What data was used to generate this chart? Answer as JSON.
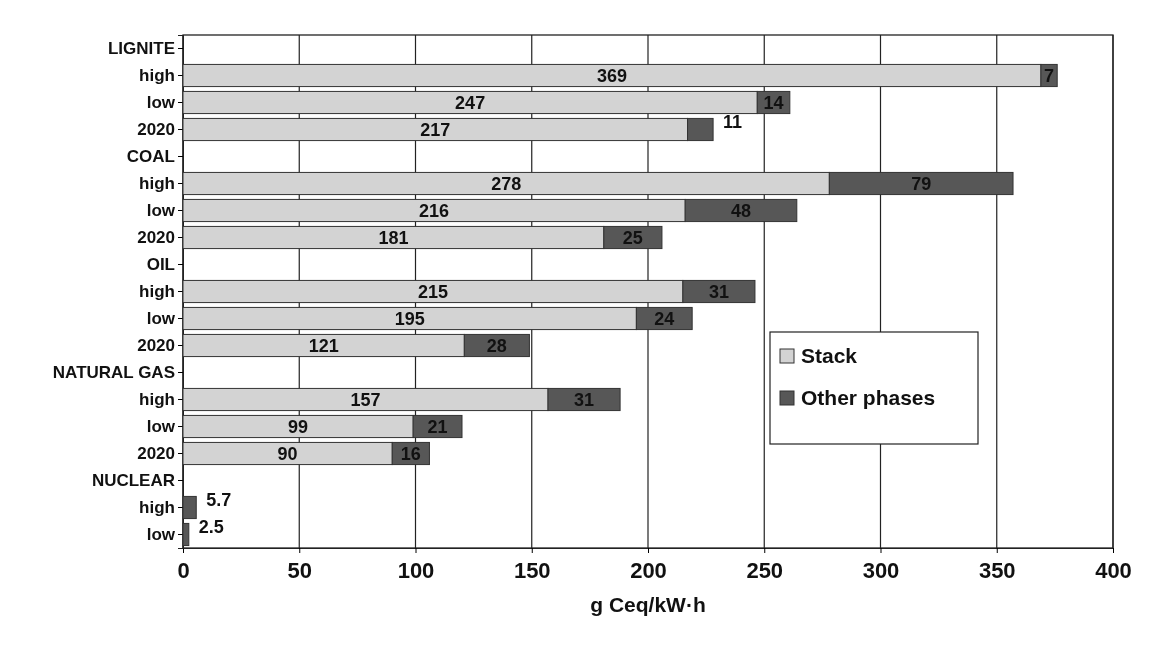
{
  "chart_data": {
    "type": "bar",
    "orientation": "horizontal",
    "stacked": true,
    "categories": [
      "LIGNITE",
      "high",
      "low",
      "2020",
      "COAL",
      "high",
      "low",
      "2020",
      "OIL",
      "high",
      "low",
      "2020",
      "NATURAL GAS",
      "high",
      "low",
      "2020",
      "NUCLEAR",
      "high",
      "low"
    ],
    "series": [
      {
        "name": "Stack",
        "color": "#d3d3d3",
        "values": [
          null,
          369,
          247,
          217,
          null,
          278,
          216,
          181,
          null,
          215,
          195,
          121,
          null,
          157,
          99,
          90,
          null,
          null,
          null
        ],
        "value_labels": [
          null,
          "369",
          "247",
          "217",
          null,
          "278",
          "216",
          "181",
          null,
          "215",
          "195",
          "121",
          null,
          "157",
          "99",
          "90",
          null,
          null,
          null
        ]
      },
      {
        "name": "Other phases",
        "color": "#575757",
        "values": [
          null,
          7,
          14,
          11,
          null,
          79,
          48,
          25,
          null,
          31,
          24,
          28,
          null,
          31,
          21,
          16,
          null,
          5.7,
          2.5
        ],
        "value_labels": [
          null,
          "7",
          "14",
          "11",
          null,
          "79",
          "48",
          "25",
          null,
          "31",
          "24",
          "28",
          null,
          "31",
          "21",
          "16",
          null,
          "5.7",
          "2.5"
        ]
      }
    ],
    "xlabel": "g Ceq/kW·h",
    "xlim": [
      0,
      400
    ],
    "xticks": [
      0,
      50,
      100,
      150,
      200,
      250,
      300,
      350,
      400
    ],
    "grid": "x",
    "legend": "right"
  }
}
